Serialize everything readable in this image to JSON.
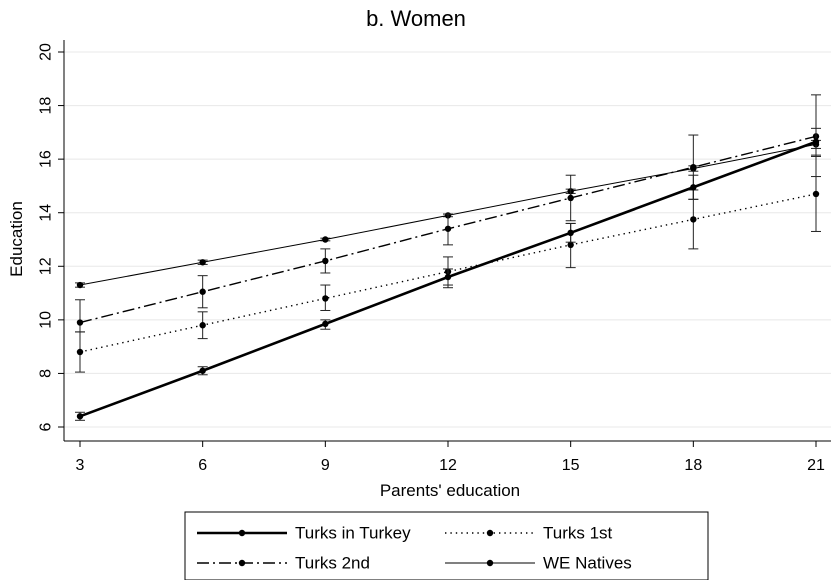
{
  "chart_data": {
    "type": "line",
    "title": "b. Women",
    "xlabel": "Parents' education",
    "ylabel": "Education",
    "x": [
      3,
      6,
      9,
      12,
      15,
      18,
      21
    ],
    "xlim": [
      3,
      21
    ],
    "ylim": [
      6,
      20
    ],
    "xticks": [
      "3",
      "6",
      "9",
      "12",
      "15",
      "18",
      "21"
    ],
    "yticks": [
      "6",
      "8",
      "10",
      "12",
      "14",
      "16",
      "18",
      "20"
    ],
    "grid": "horizontal",
    "legend_position": "bottom",
    "series": [
      {
        "name": "Turks in Turkey",
        "style": "solid-thick",
        "values": [
          6.4,
          8.1,
          9.85,
          11.6,
          13.25,
          14.95,
          16.65
        ],
        "ci_low": [
          6.25,
          7.95,
          9.65,
          11.3,
          12.9,
          14.5,
          16.15
        ],
        "ci_high": [
          6.55,
          8.25,
          10.0,
          11.9,
          13.6,
          15.4,
          17.15
        ]
      },
      {
        "name": "Turks 1st",
        "style": "dotted",
        "values": [
          8.8,
          9.8,
          10.8,
          11.8,
          12.8,
          13.75,
          14.7
        ],
        "ci_low": [
          8.05,
          9.3,
          10.35,
          11.2,
          11.95,
          12.65,
          13.3
        ],
        "ci_high": [
          9.55,
          10.3,
          11.3,
          12.35,
          13.6,
          14.85,
          16.1
        ]
      },
      {
        "name": "Turks 2nd",
        "style": "dash-dot",
        "values": [
          9.9,
          11.05,
          12.2,
          13.4,
          14.55,
          15.7,
          16.85
        ],
        "ci_low": [
          9.55,
          10.45,
          11.75,
          12.8,
          13.7,
          14.5,
          15.35
        ],
        "ci_high": [
          10.75,
          11.65,
          12.65,
          13.95,
          15.4,
          16.9,
          18.4
        ]
      },
      {
        "name": "WE Natives",
        "style": "solid-thin",
        "values": [
          11.3,
          12.15,
          13.0,
          13.9,
          14.8,
          15.65,
          16.55
        ],
        "ci_low": [
          11.22,
          12.07,
          12.95,
          13.85,
          14.72,
          15.55,
          16.4
        ],
        "ci_high": [
          11.38,
          12.23,
          13.05,
          13.95,
          14.88,
          15.75,
          16.7
        ]
      }
    ]
  }
}
